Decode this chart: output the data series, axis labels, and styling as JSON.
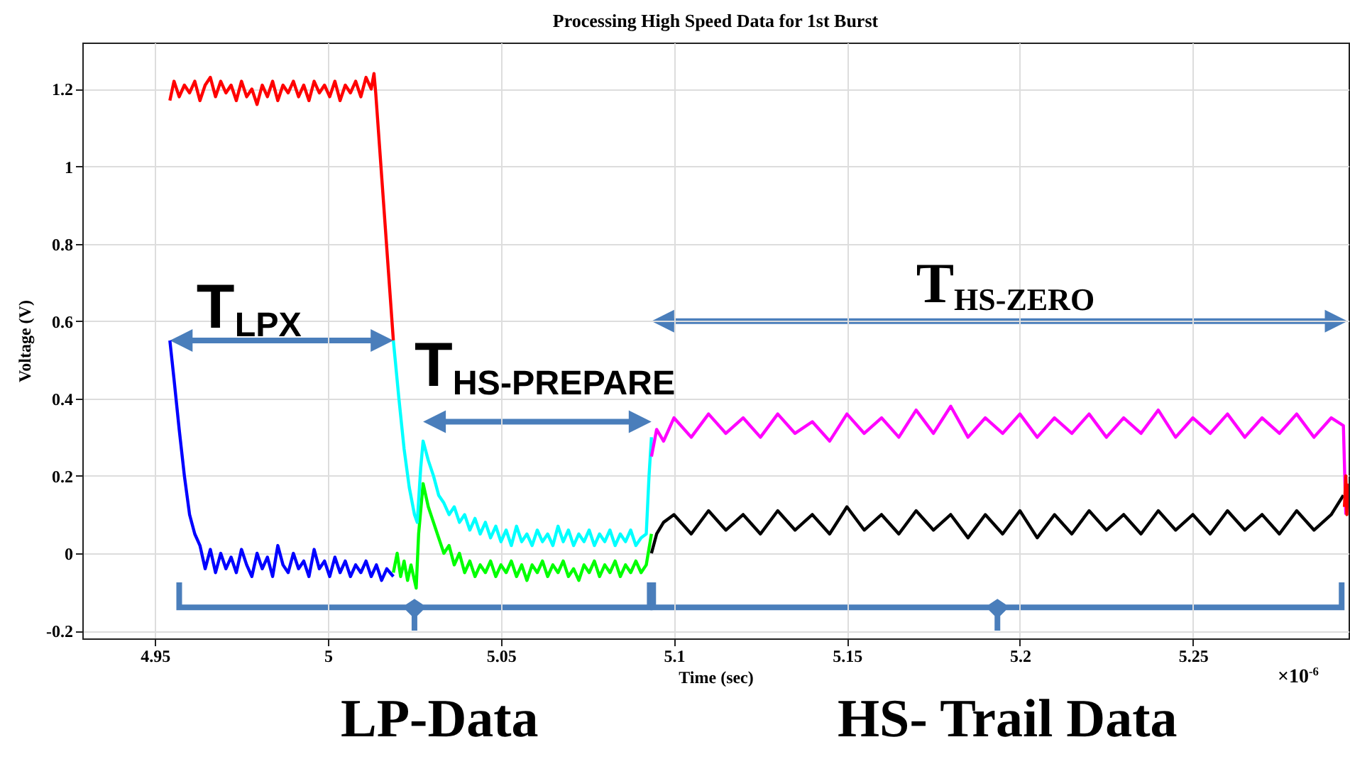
{
  "chart_data": {
    "type": "line",
    "title": "Processing High Speed Data for 1st Burst",
    "xlabel": "Time (sec)",
    "ylabel": "Voltage (V)",
    "xlim": [
      4.929,
      5.295
    ],
    "ylim": [
      -0.22,
      1.32
    ],
    "xticks": [
      4.95,
      5,
      5.05,
      5.1,
      5.15,
      5.2,
      5.25
    ],
    "yticks": [
      -0.2,
      0,
      0.2,
      0.4,
      0.6,
      0.8,
      1,
      1.2
    ],
    "grid": true,
    "line_style": "solid",
    "annotations": [
      "T$_{LPX}$",
      "T$_{HS-PREPARE}$",
      "T$_{HS-ZERO}$",
      "LP-Data",
      "HS- Trail Data",
      "×10$^{-6}$"
    ],
    "series": [
      {
        "color": "#ff0000",
        "x": [
          4.9543,
          4.9555,
          4.957,
          4.9585,
          4.96,
          4.9615,
          4.963,
          4.9645,
          4.966,
          4.9675,
          4.969,
          4.9705,
          4.972,
          4.9735,
          4.975,
          4.9765,
          4.978,
          4.9795,
          4.981,
          4.9825,
          4.984,
          4.9855,
          4.987,
          4.9885,
          4.99,
          4.9915,
          4.993,
          4.9945,
          4.996,
          4.9975,
          4.999,
          5.0005,
          5.002,
          5.0035,
          5.005,
          5.0065,
          5.008,
          5.0095,
          5.011,
          5.0125,
          5.0133,
          5.0138,
          5.0189
        ],
        "values": [
          1.17,
          1.22,
          1.18,
          1.21,
          1.19,
          1.22,
          1.17,
          1.21,
          1.23,
          1.18,
          1.22,
          1.19,
          1.21,
          1.17,
          1.22,
          1.18,
          1.2,
          1.16,
          1.21,
          1.18,
          1.22,
          1.17,
          1.21,
          1.19,
          1.22,
          1.18,
          1.21,
          1.17,
          1.22,
          1.19,
          1.21,
          1.18,
          1.22,
          1.17,
          1.21,
          1.19,
          1.22,
          1.18,
          1.23,
          1.2,
          1.24,
          1.19,
          0.55
        ]
      },
      {
        "color": "#0000ff",
        "x": [
          4.9543,
          4.9555,
          4.957,
          4.9585,
          4.96,
          4.9615,
          4.963,
          4.9645,
          4.966,
          4.9675,
          4.969,
          4.9705,
          4.972,
          4.9735,
          4.975,
          4.9765,
          4.978,
          4.9795,
          4.981,
          4.9825,
          4.984,
          4.9855,
          4.987,
          4.9885,
          4.99,
          4.9915,
          4.993,
          4.9945,
          4.996,
          4.9975,
          4.999,
          5.0005,
          5.002,
          5.0035,
          5.005,
          5.0065,
          5.008,
          5.0095,
          5.011,
          5.0125,
          5.014,
          5.0155,
          5.017,
          5.0189
        ],
        "values": [
          0.55,
          0.45,
          0.32,
          0.2,
          0.1,
          0.05,
          0.02,
          -0.04,
          0.01,
          -0.05,
          0,
          -0.04,
          -0.01,
          -0.05,
          0.01,
          -0.03,
          -0.06,
          0,
          -0.04,
          -0.01,
          -0.06,
          0.02,
          -0.03,
          -0.05,
          0,
          -0.04,
          -0.02,
          -0.06,
          0.01,
          -0.04,
          -0.02,
          -0.06,
          -0.01,
          -0.05,
          -0.02,
          -0.06,
          -0.03,
          -0.05,
          -0.02,
          -0.06,
          -0.03,
          -0.07,
          -0.04,
          -0.06
        ]
      },
      {
        "color": "#00ff00",
        "x": [
          5.0189,
          5.02,
          5.021,
          5.022,
          5.023,
          5.024,
          5.0255,
          5.0262,
          5.0275,
          5.029,
          5.0305,
          5.032,
          5.0335,
          5.035,
          5.0365,
          5.038,
          5.0395,
          5.041,
          5.0425,
          5.044,
          5.0455,
          5.047,
          5.0485,
          5.05,
          5.0515,
          5.053,
          5.0545,
          5.056,
          5.0575,
          5.059,
          5.0605,
          5.062,
          5.0635,
          5.065,
          5.0665,
          5.068,
          5.0695,
          5.071,
          5.0725,
          5.074,
          5.0755,
          5.077,
          5.0785,
          5.08,
          5.0815,
          5.083,
          5.0845,
          5.086,
          5.0875,
          5.089,
          5.0905,
          5.092,
          5.0935
        ],
        "values": [
          -0.05,
          0,
          -0.06,
          -0.02,
          -0.07,
          -0.03,
          -0.09,
          0.05,
          0.18,
          0.12,
          0.08,
          0.04,
          0,
          0.02,
          -0.03,
          0,
          -0.05,
          -0.02,
          -0.06,
          -0.03,
          -0.05,
          -0.02,
          -0.06,
          -0.03,
          -0.05,
          -0.02,
          -0.06,
          -0.03,
          -0.07,
          -0.03,
          -0.05,
          -0.02,
          -0.06,
          -0.03,
          -0.05,
          -0.02,
          -0.06,
          -0.04,
          -0.07,
          -0.03,
          -0.05,
          -0.02,
          -0.06,
          -0.03,
          -0.05,
          -0.02,
          -0.06,
          -0.03,
          -0.05,
          -0.02,
          -0.05,
          -0.03,
          0.05
        ]
      },
      {
        "color": "#00ffff",
        "x": [
          5.0189,
          5.0205,
          5.022,
          5.0235,
          5.025,
          5.0258,
          5.0268,
          5.0275,
          5.029,
          5.0305,
          5.032,
          5.0335,
          5.035,
          5.0365,
          5.038,
          5.0395,
          5.041,
          5.0425,
          5.044,
          5.0455,
          5.047,
          5.0485,
          5.05,
          5.0515,
          5.053,
          5.0545,
          5.056,
          5.0575,
          5.059,
          5.0605,
          5.062,
          5.0635,
          5.065,
          5.0665,
          5.068,
          5.0695,
          5.071,
          5.0725,
          5.074,
          5.0755,
          5.077,
          5.0785,
          5.08,
          5.0815,
          5.083,
          5.0845,
          5.086,
          5.0875,
          5.089,
          5.0905,
          5.092,
          5.0928,
          5.0935
        ],
        "values": [
          0.55,
          0.4,
          0.27,
          0.17,
          0.1,
          0.08,
          0.22,
          0.29,
          0.24,
          0.2,
          0.15,
          0.13,
          0.1,
          0.12,
          0.08,
          0.1,
          0.06,
          0.09,
          0.05,
          0.08,
          0.04,
          0.07,
          0.03,
          0.06,
          0.02,
          0.07,
          0.03,
          0.05,
          0.02,
          0.06,
          0.03,
          0.05,
          0.02,
          0.07,
          0.03,
          0.06,
          0.02,
          0.05,
          0.03,
          0.06,
          0.02,
          0.05,
          0.03,
          0.06,
          0.02,
          0.05,
          0.03,
          0.06,
          0.02,
          0.04,
          0.05,
          0.2,
          0.3
        ]
      },
      {
        "color": "#ff00ff",
        "x": [
          5.0935,
          5.095,
          5.097,
          5.1,
          5.105,
          5.11,
          5.115,
          5.12,
          5.125,
          5.13,
          5.135,
          5.14,
          5.145,
          5.15,
          5.155,
          5.16,
          5.165,
          5.17,
          5.175,
          5.18,
          5.185,
          5.19,
          5.195,
          5.2,
          5.205,
          5.21,
          5.215,
          5.22,
          5.225,
          5.23,
          5.235,
          5.24,
          5.245,
          5.25,
          5.255,
          5.26,
          5.265,
          5.27,
          5.275,
          5.28,
          5.285,
          5.29,
          5.2935,
          5.2942
        ],
        "values": [
          0.25,
          0.32,
          0.29,
          0.35,
          0.3,
          0.36,
          0.31,
          0.35,
          0.3,
          0.36,
          0.31,
          0.34,
          0.29,
          0.36,
          0.31,
          0.35,
          0.3,
          0.37,
          0.31,
          0.38,
          0.3,
          0.35,
          0.31,
          0.36,
          0.3,
          0.35,
          0.31,
          0.36,
          0.3,
          0.35,
          0.31,
          0.37,
          0.3,
          0.35,
          0.31,
          0.36,
          0.3,
          0.35,
          0.31,
          0.36,
          0.3,
          0.35,
          0.33,
          0.1
        ]
      },
      {
        "color": "#000000",
        "x": [
          5.0935,
          5.095,
          5.097,
          5.1,
          5.105,
          5.11,
          5.115,
          5.12,
          5.125,
          5.13,
          5.135,
          5.14,
          5.145,
          5.15,
          5.155,
          5.16,
          5.165,
          5.17,
          5.175,
          5.18,
          5.185,
          5.19,
          5.195,
          5.2,
          5.205,
          5.21,
          5.215,
          5.22,
          5.225,
          5.23,
          5.235,
          5.24,
          5.245,
          5.25,
          5.255,
          5.26,
          5.265,
          5.27,
          5.275,
          5.28,
          5.285,
          5.29,
          5.2935
        ],
        "values": [
          0,
          0.05,
          0.08,
          0.1,
          0.05,
          0.11,
          0.06,
          0.1,
          0.05,
          0.11,
          0.06,
          0.1,
          0.05,
          0.12,
          0.06,
          0.1,
          0.05,
          0.11,
          0.06,
          0.1,
          0.04,
          0.1,
          0.05,
          0.11,
          0.04,
          0.1,
          0.05,
          0.11,
          0.06,
          0.1,
          0.05,
          0.11,
          0.06,
          0.1,
          0.05,
          0.11,
          0.06,
          0.1,
          0.05,
          0.11,
          0.06,
          0.1,
          0.15
        ]
      },
      {
        "color": "#ff0000",
        "x": [
          5.2938,
          5.2942,
          5.2945,
          5.2947
        ],
        "values": [
          0.12,
          0.2,
          0.1,
          0.18
        ]
      }
    ]
  }
}
